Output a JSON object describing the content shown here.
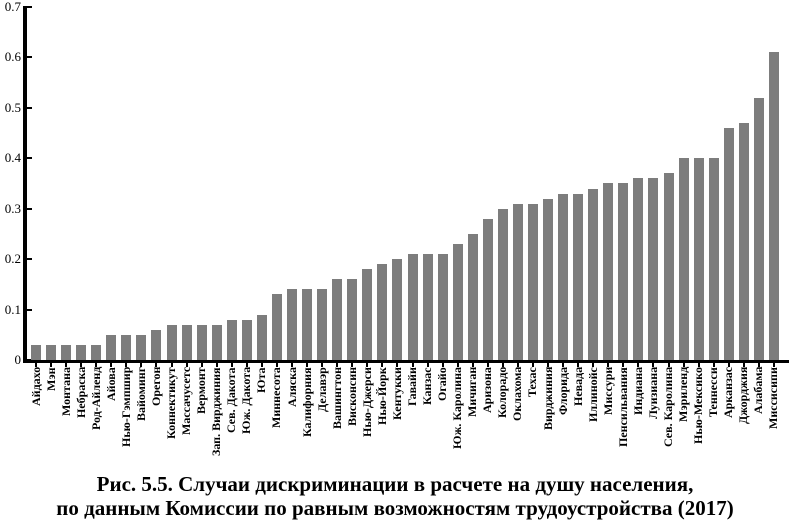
{
  "chart_data": {
    "type": "bar",
    "title": "Рис. 5.5. Случаи дискриминации в расчете на душу населения, по данным Комиссии по равным возможностям трудоустройства (2017)",
    "xlabel": "",
    "ylabel": "",
    "ylim": [
      0,
      0.7
    ],
    "ytick_labels": [
      "0",
      "0.1",
      "0.2",
      "0.3",
      "0.4",
      "0.5",
      "0.6",
      "0.7"
    ],
    "ytick_values": [
      0,
      0.1,
      0.2,
      0.3,
      0.4,
      0.5,
      0.6,
      0.7
    ],
    "grid": false,
    "legend": false,
    "bar_color": "#7d7d7d",
    "axis_color": "#000000",
    "categories": [
      "Айдахо",
      "Мэн",
      "Монтана",
      "Небраска",
      "Род-Айленд",
      "Айова",
      "Нью-Гэмпшир",
      "Вайоминг",
      "Орегон",
      "Коннектикут",
      "Массачусетс",
      "Вермонт",
      "Зап. Вирджиния",
      "Сев. Дакота",
      "Юж. Дакота",
      "Юта",
      "Миннесота",
      "Аляска",
      "Калифорния",
      "Делавэр",
      "Вашингтон",
      "Висконсин",
      "Нью-Джерси",
      "Нью-Йорк",
      "Кентукки",
      "Гавайи",
      "Канзас",
      "Огайо",
      "Юж. Каролина",
      "Мичиган",
      "Аризона",
      "Колорадо",
      "Оклахома",
      "Техас",
      "Вирджиния",
      "Флорида",
      "Невада",
      "Иллинойс",
      "Миссури",
      "Пенсильвания",
      "Индиана",
      "Луизиана",
      "Сев. Каролина",
      "Мэриленд",
      "Нью-Мексико",
      "Теннесси",
      "Арканзас",
      "Джорджия",
      "Алабама",
      "Миссисипи"
    ],
    "values": [
      0.03,
      0.03,
      0.03,
      0.03,
      0.03,
      0.05,
      0.05,
      0.05,
      0.06,
      0.07,
      0.07,
      0.07,
      0.07,
      0.08,
      0.08,
      0.09,
      0.13,
      0.14,
      0.14,
      0.14,
      0.16,
      0.16,
      0.18,
      0.19,
      0.2,
      0.21,
      0.21,
      0.21,
      0.23,
      0.25,
      0.28,
      0.3,
      0.31,
      0.31,
      0.32,
      0.33,
      0.33,
      0.34,
      0.35,
      0.35,
      0.36,
      0.36,
      0.37,
      0.4,
      0.4,
      0.4,
      0.46,
      0.47,
      0.52,
      0.61
    ]
  },
  "caption": {
    "line1": "Рис. 5.5. Случаи дискриминации в расчете на душу населения,",
    "line2": "по данным Комиссии по равным возможностям трудоустройства (2017)"
  }
}
